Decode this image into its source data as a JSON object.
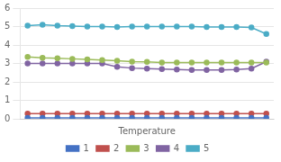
{
  "chart_data": {
    "type": "line",
    "xlabel": "Temperature",
    "categories": [
      null,
      null,
      null,
      null,
      null,
      null,
      null,
      null,
      null,
      null,
      null,
      null,
      null,
      null,
      null,
      null,
      null
    ],
    "series": [
      {
        "name": "1",
        "color": "#4472C4",
        "values": [
          0.05,
          0.05,
          0.05,
          0.05,
          0.05,
          0.05,
          0.05,
          0.05,
          0.05,
          0.05,
          0.05,
          0.05,
          0.05,
          0.05,
          0.05,
          0.05,
          0.05
        ]
      },
      {
        "name": "2",
        "color": "#C0504D",
        "values": [
          0.28,
          0.28,
          0.28,
          0.28,
          0.28,
          0.28,
          0.28,
          0.28,
          0.28,
          0.28,
          0.28,
          0.28,
          0.28,
          0.28,
          0.28,
          0.28,
          0.28
        ]
      },
      {
        "name": "3",
        "color": "#9BBB59",
        "values": [
          3.35,
          3.3,
          3.28,
          3.25,
          3.22,
          3.18,
          3.15,
          3.1,
          3.08,
          3.05,
          3.05,
          3.05,
          3.05,
          3.05,
          3.05,
          3.05,
          3.05
        ]
      },
      {
        "name": "4",
        "color": "#8064A2",
        "values": [
          3.0,
          3.0,
          3.0,
          3.0,
          3.0,
          3.0,
          2.82,
          2.75,
          2.72,
          2.7,
          2.67,
          2.65,
          2.65,
          2.65,
          2.67,
          2.72,
          3.1
        ]
      },
      {
        "name": "5",
        "color": "#4BACC6",
        "values": [
          5.05,
          5.1,
          5.05,
          5.02,
          5.0,
          5.0,
          4.98,
          5.0,
          5.0,
          5.0,
          5.0,
          5.0,
          4.98,
          4.98,
          4.97,
          4.95,
          4.6
        ]
      }
    ],
    "marker": "o",
    "ylim": [
      0,
      6
    ],
    "yticks": [
      0,
      1,
      2,
      3,
      4,
      5,
      6
    ],
    "grid": true,
    "legend": "bottom",
    "tick_labels": "y"
  }
}
